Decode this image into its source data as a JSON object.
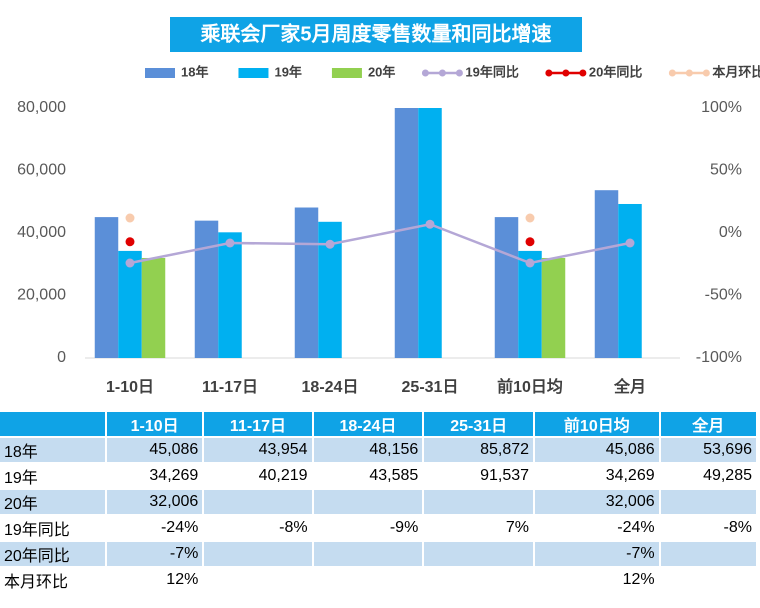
{
  "chart_data": {
    "type": "bar",
    "title": "乘联会厂家5月周度零售数量和同比增速",
    "categories": [
      "1-10日",
      "11-17日",
      "18-24日",
      "25-31日",
      "前10日均",
      "全月"
    ],
    "ylim": [
      0,
      80000
    ],
    "yticks": [
      0,
      {
        "value": 20000,
        "label": "20,000"
      },
      {
        "value": 40000,
        "label": "40,000"
      },
      {
        "value": 60000,
        "label": "60,000"
      },
      {
        "value": 80000,
        "label": "80,000"
      }
    ],
    "y2lim": [
      -100,
      100
    ],
    "y2ticks": [
      {
        "value": -100,
        "label": "-100%"
      },
      {
        "value": -50,
        "label": "-50%"
      },
      {
        "value": 0,
        "label": "0%"
      },
      {
        "value": 50,
        "label": "50%"
      },
      {
        "value": 100,
        "label": "100%"
      }
    ],
    "grid": false,
    "series": [
      {
        "name": "18年",
        "type": "bar",
        "color": "#5b8fd8",
        "values": [
          45086,
          43954,
          48156,
          85872,
          45086,
          53696
        ],
        "value_labels": [
          "45,086",
          "43,954",
          "48,156",
          "85,872",
          "45,086",
          "53,696"
        ]
      },
      {
        "name": "19年",
        "type": "bar",
        "color": "#00b0f0",
        "values": [
          34269,
          40219,
          43585,
          91537,
          34269,
          49285
        ],
        "value_labels": [
          "34,269",
          "40,219",
          "43,585",
          "91,537",
          "34,269",
          "49,285"
        ]
      },
      {
        "name": "20年",
        "type": "bar",
        "color": "#92d050",
        "values": [
          32006,
          null,
          null,
          null,
          32006,
          null
        ],
        "value_labels": [
          "32,006",
          null,
          null,
          null,
          "32,006",
          null
        ]
      },
      {
        "name": "19年同比",
        "type": "line",
        "axis": "y2",
        "color": "#b4a7d6",
        "values": [
          -24,
          -8,
          -9,
          7,
          -24,
          -8
        ],
        "value_labels": [
          "-24%",
          "-8%",
          "-9%",
          "7%",
          "-24%",
          "-8%"
        ]
      },
      {
        "name": "20年同比",
        "type": "line",
        "axis": "y2",
        "color": "#e00000",
        "values": [
          -7,
          null,
          null,
          null,
          -7,
          null
        ],
        "value_labels": [
          "-7%",
          null,
          null,
          null,
          "-7%",
          null
        ]
      },
      {
        "name": "本月环比",
        "type": "line",
        "axis": "y2",
        "color": "#f8cbad",
        "values": [
          12,
          null,
          null,
          null,
          12,
          null
        ],
        "value_labels": [
          "12%",
          null,
          null,
          null,
          "12%",
          null
        ]
      }
    ]
  }
}
